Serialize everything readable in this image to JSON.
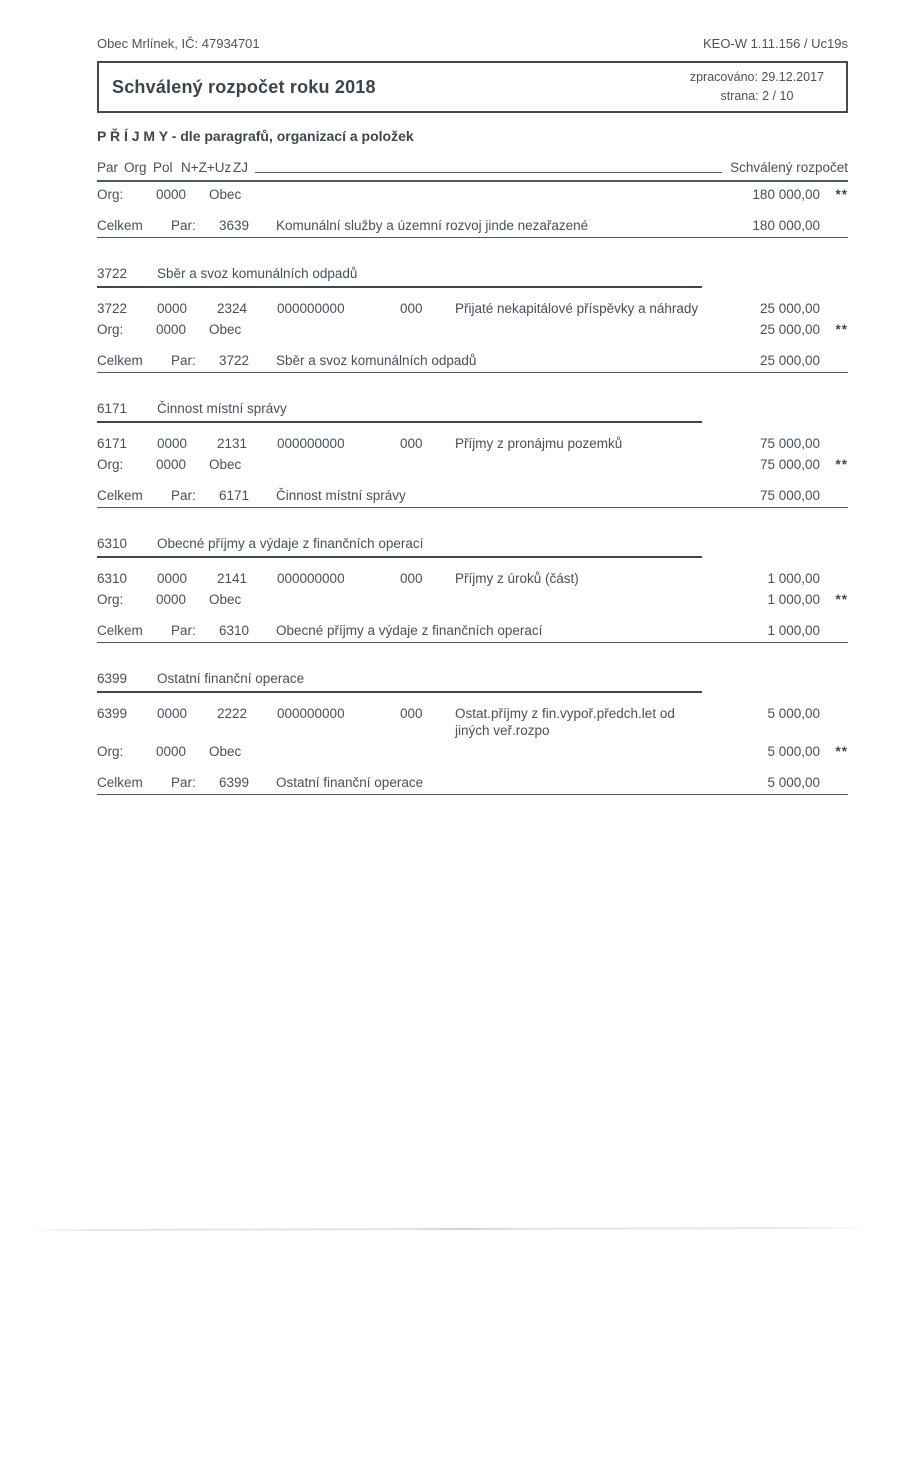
{
  "document": {
    "org_header": "Obec Mrlínek, IČ: 47934701",
    "system_header": "KEO-W 1.11.156 / Uc19s",
    "title": "Schválený rozpočet roku 2018",
    "processed": "zpracováno: 29.12.2017",
    "page": "strana: 2 / 10",
    "section_title": "P Ř Í J M Y - dle paragrafů, organizací a položek"
  },
  "table": {
    "header": {
      "par": "Par",
      "org": "Org",
      "pol": "Pol",
      "nzuz": "N+Z+Uz",
      "zj": "ZJ",
      "amount": "Schválený rozpočet"
    },
    "carryover": {
      "org_row": {
        "label": "Org:",
        "code": "0000",
        "name": "Obec",
        "amount": "180 000,00",
        "marker": "**"
      },
      "total_row": {
        "label": "Celkem",
        "par_label": "Par:",
        "par": "3639",
        "name": "Komunální služby a územní rozvoj jinde nezařazené",
        "amount": "180 000,00"
      }
    },
    "sections": [
      {
        "par": "3722",
        "title": "Sběr a svoz komunálních odpadů",
        "detail": {
          "par": "3722",
          "org": "0000",
          "pol": "2324",
          "nzuz": "000000000",
          "zj": "000",
          "text": "Přijaté nekapitálové příspěvky a náhrady",
          "amount": "25 000,00"
        },
        "org_row": {
          "label": "Org:",
          "code": "0000",
          "name": "Obec",
          "amount": "25 000,00",
          "marker": "**"
        },
        "total_row": {
          "label": "Celkem",
          "par_label": "Par:",
          "par": "3722",
          "name": "Sběr a svoz komunálních odpadů",
          "amount": "25 000,00"
        }
      },
      {
        "par": "6171",
        "title": "Činnost místní správy",
        "detail": {
          "par": "6171",
          "org": "0000",
          "pol": "2131",
          "nzuz": "000000000",
          "zj": "000",
          "text": "Příjmy z pronájmu pozemků",
          "amount": "75 000,00"
        },
        "org_row": {
          "label": "Org:",
          "code": "0000",
          "name": "Obec",
          "amount": "75 000,00",
          "marker": "**"
        },
        "total_row": {
          "label": "Celkem",
          "par_label": "Par:",
          "par": "6171",
          "name": "Činnost místní správy",
          "amount": "75 000,00"
        }
      },
      {
        "par": "6310",
        "title": "Obecné příjmy a výdaje z finančních operací",
        "detail": {
          "par": "6310",
          "org": "0000",
          "pol": "2141",
          "nzuz": "000000000",
          "zj": "000",
          "text": "Příjmy z úroků (část)",
          "amount": "1 000,00"
        },
        "org_row": {
          "label": "Org:",
          "code": "0000",
          "name": "Obec",
          "amount": "1 000,00",
          "marker": "**"
        },
        "total_row": {
          "label": "Celkem",
          "par_label": "Par:",
          "par": "6310",
          "name": "Obecné příjmy a výdaje z finančních operací",
          "amount": "1 000,00"
        }
      },
      {
        "par": "6399",
        "title": "Ostatní finanční operace",
        "detail": {
          "par": "6399",
          "org": "0000",
          "pol": "2222",
          "nzuz": "000000000",
          "zj": "000",
          "text": "Ostat.příjmy z fin.vypoř.předch.let od jiných veř.rozpo",
          "amount": "5 000,00"
        },
        "org_row": {
          "label": "Org:",
          "code": "0000",
          "name": "Obec",
          "amount": "5 000,00",
          "marker": "**"
        },
        "total_row": {
          "label": "Celkem",
          "par_label": "Par:",
          "par": "6399",
          "name": "Ostatní finanční operace",
          "amount": "5 000,00"
        }
      }
    ]
  }
}
